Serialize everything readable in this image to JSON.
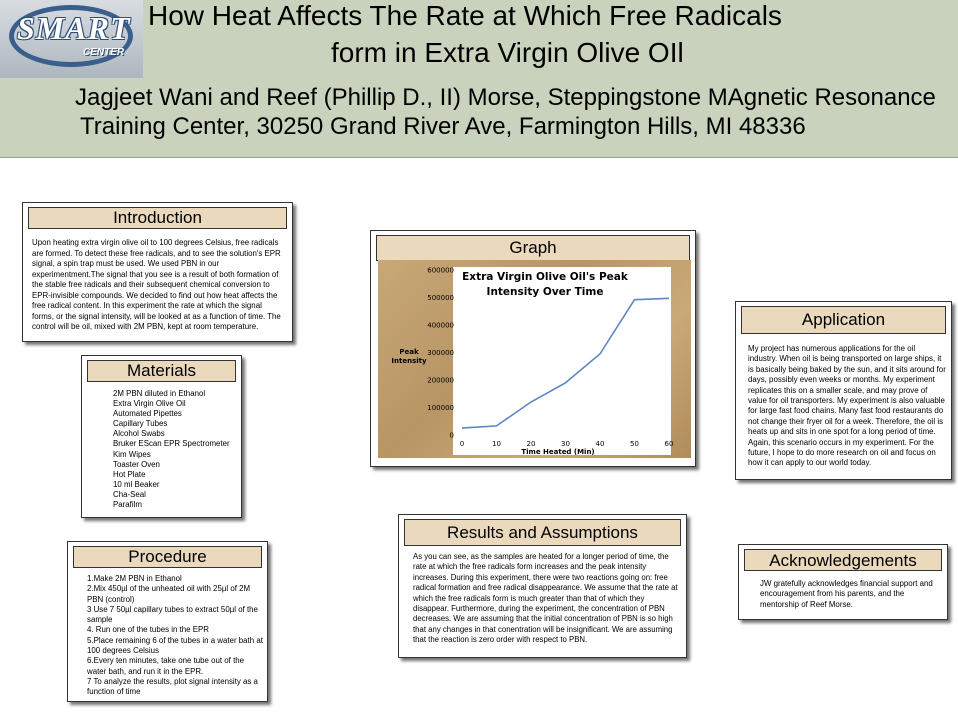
{
  "header": {
    "logo": "SMART CENTER",
    "logo_main": "SMART",
    "logo_sub": "CENTER",
    "title_line1": "How Heat Affects The Rate at Which Free Radicals",
    "title_line2": "form in Extra Virgin Olive OIl",
    "authors_line1": "Jagjeet Wani and Reef (Phillip D., II) Morse, Steppingstone MAgnetic Resonance",
    "authors_line2": "Training Center, 30250 Grand River Ave, Farmington Hills, MI  48336"
  },
  "introduction": {
    "title": "Introduction",
    "text": "Upon heating extra virgin olive oil to 100 degrees Celsius, free radicals are formed. To detect these free radicals, and to see the solution's EPR signal, a spin trap must be used. We used PBN in our experimentment.The signal that you see is a result of both formation of the stable free radicals and their subsequent chemical conversion to EPR-invisible compounds. We decided to find out how heat affects the free radical content. In this experiment the rate at which the signal forms, or the signal intensity, will be looked at as a function of time. The control will be oil, mixed with 2M PBN, kept at room temperature."
  },
  "materials": {
    "title": "Materials",
    "items": [
      "2M PBN diluted in Ethanol",
      "Extra Virgin Olive Oil",
      "Automated Pipettes",
      "Capillary Tubes",
      "Alcohol Swabs",
      "Bruker EScan EPR Spectrometer",
      "Kim Wipes",
      "Toaster Oven",
      "Hot Plate",
      "10 ml Beaker",
      "Cha-Seal",
      "Parafilm"
    ]
  },
  "procedure": {
    "title": "Procedure",
    "steps": [
      "1.Make 2M PBN in Ethanol",
      "2.Mix 450µl of the unheated oil with 25µl of 2M PBN (control)",
      "3 Use 7 50µl  capillary tubes to extract 50µl of the sample",
      "4. Run one of the tubes in the EPR",
      "5.Place remaining 6 of the tubes in a water bath at 100 degrees Celsius",
      "6.Every ten minutes, take one tube out of the water bath, and run it in the EPR.",
      "7 To analyze the results, plot signal intensity as a function of time"
    ]
  },
  "graph": {
    "title": "Graph"
  },
  "chart_data": {
    "type": "line",
    "title_line1": "Extra Virgin Olive Oil's Peak",
    "title_line2": "Intensity Over Time",
    "xlabel": "Time Heated (Min)",
    "ylabel_line1": "Peak",
    "ylabel_line2": "Intensity",
    "x": [
      0,
      10,
      20,
      30,
      40,
      50,
      60
    ],
    "y": [
      25000,
      33000,
      120000,
      190000,
      295000,
      492000,
      497000
    ],
    "xlim": [
      0,
      60
    ],
    "ylim": [
      0,
      600000
    ],
    "xticks": [
      "0",
      "10",
      "20",
      "30",
      "40",
      "50",
      "60"
    ],
    "yticks": [
      "0",
      "100000",
      "200000",
      "300000",
      "400000",
      "500000",
      "600000"
    ],
    "line_color": "#5b87c5",
    "grid": false
  },
  "application": {
    "title": "Application",
    "text": "My project has numerous applications for the oil industry.  When oil is being transported on large ships, it is basically being baked by the sun, and it sits around for days, possibly even weeks or months. My experiment replicates this on a smaller scale, and may prove of value for oil transporters. My experiment is also valuable for large fast food chains. Many fast food restaurants do not change their fryer oil for a week. Therefore, the oil is heats up and sits in one spot for a long period of time. Again, this scenario occurs in my experiment. For the future, I hope to do more research on oil and focus on how it can apply to our world today."
  },
  "results": {
    "title": "Results and Assumptions",
    "text": "As you can see, as the samples are heated for a longer period of time, the rate at which the free radicals form increases and the peak intensity increases. During this experiment, there were two reactions going on: free radical formation and free radical disappearance. We assume that the rate at which the free radicals form is much greater than that of which they disappear. Furthermore, during the experiment, the concentration of PBN decreases. We are assuming that the initial concentration of PBN is so high that any changes in that conentration will be insignificant. We are assuming that the reaction is zero order with respect to PBN."
  },
  "acknowledgements": {
    "title": "Acknowledgements",
    "text": "JW gratefully acknowledges financial support and encouragement from his parents, and the mentorship of Reef Morse."
  }
}
